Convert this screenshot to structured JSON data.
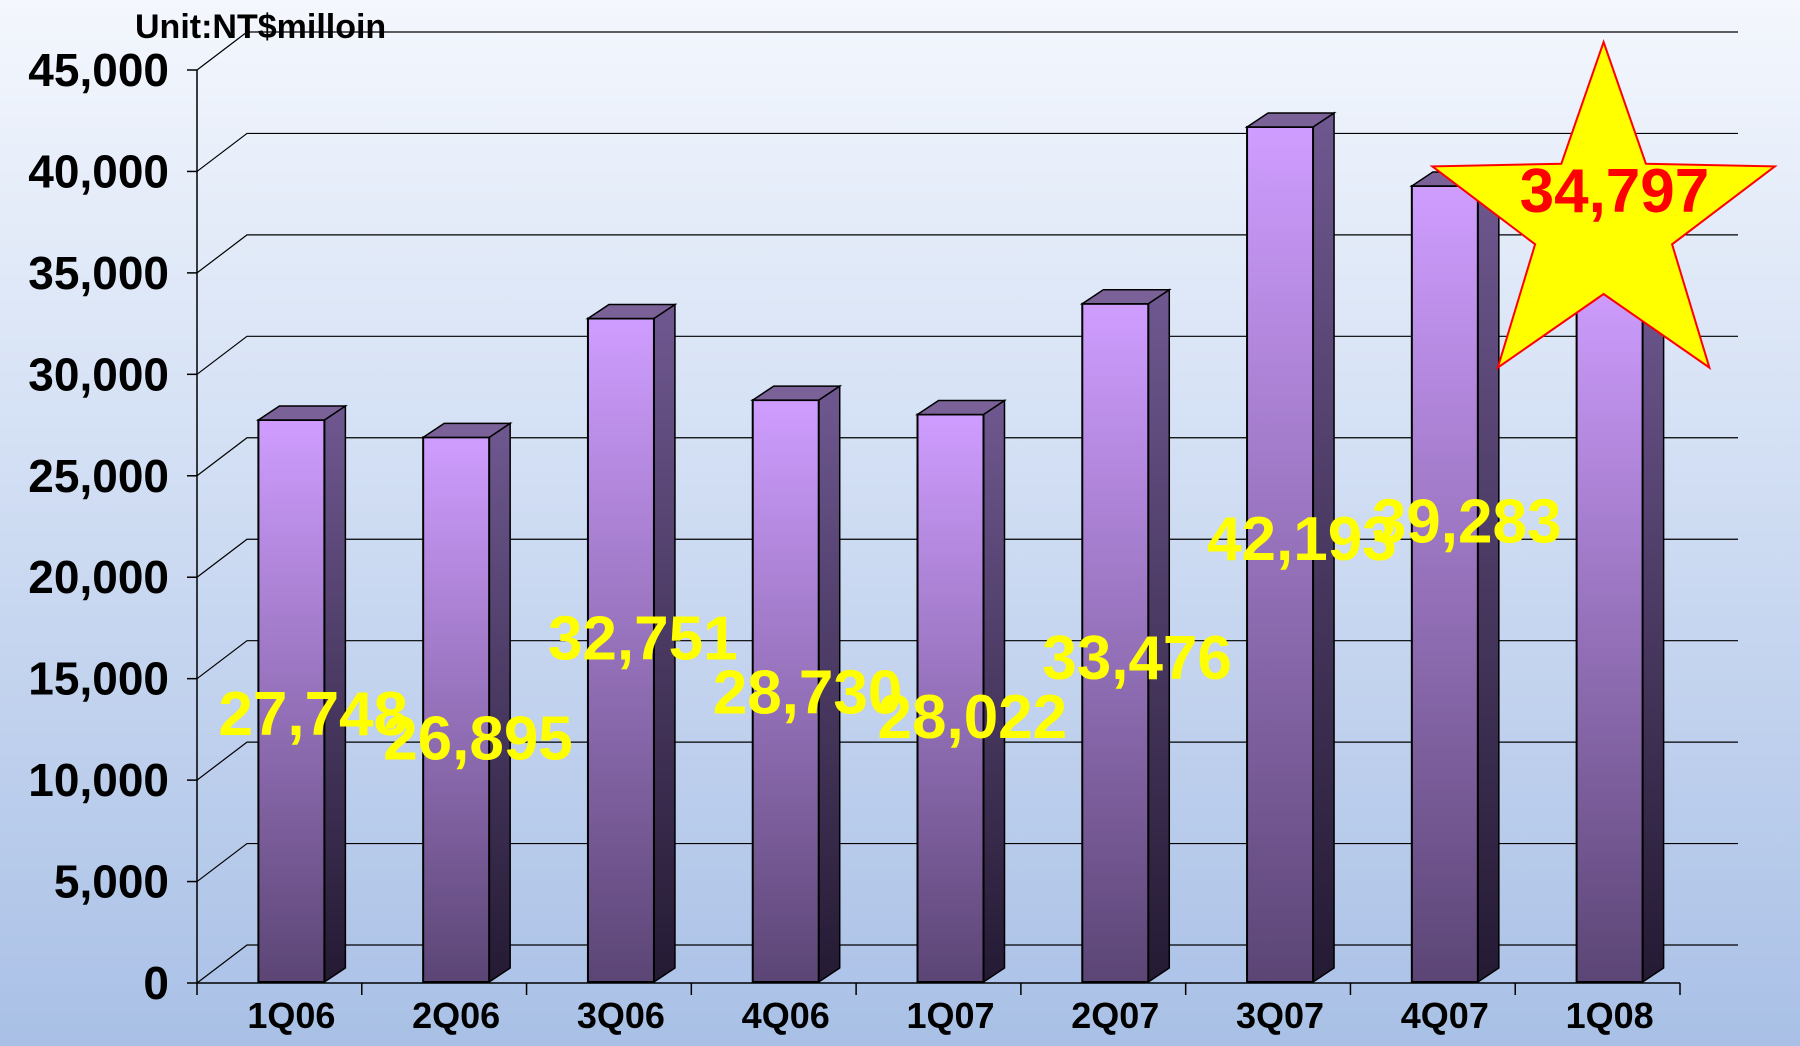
{
  "chart_data": {
    "type": "bar",
    "unit_label": "Unit:NT$milloin",
    "categories": [
      "1Q06",
      "2Q06",
      "3Q06",
      "4Q06",
      "1Q07",
      "2Q07",
      "3Q07",
      "4Q07",
      "1Q08"
    ],
    "values": [
      27748,
      26895,
      32751,
      28730,
      28022,
      33476,
      42193,
      39283,
      34797
    ],
    "data_labels": [
      "27,748",
      "26,895",
      "32,751",
      "28,730",
      "28,022",
      "33,476",
      "42,193",
      "39,283",
      "34,797"
    ],
    "ylim": [
      0,
      45000
    ],
    "y_ticks": [
      0,
      5000,
      10000,
      15000,
      20000,
      25000,
      30000,
      35000,
      40000,
      45000
    ],
    "y_tick_labels": [
      "0",
      "5,000",
      "10,000",
      "15,000",
      "20,000",
      "25,000",
      "30,000",
      "35,000",
      "40,000",
      "45,000"
    ],
    "grid": true,
    "bar_style": "3d",
    "highlighted_category": "1Q08",
    "highlight_marker": "star",
    "colors": {
      "bar_top": "#cf9dff",
      "bar_bottom": "#5b4575",
      "label_default": "#ffff00",
      "label_highlight": "#ff0000",
      "star_fill": "#ffff00",
      "star_stroke": "#ff0000"
    }
  }
}
